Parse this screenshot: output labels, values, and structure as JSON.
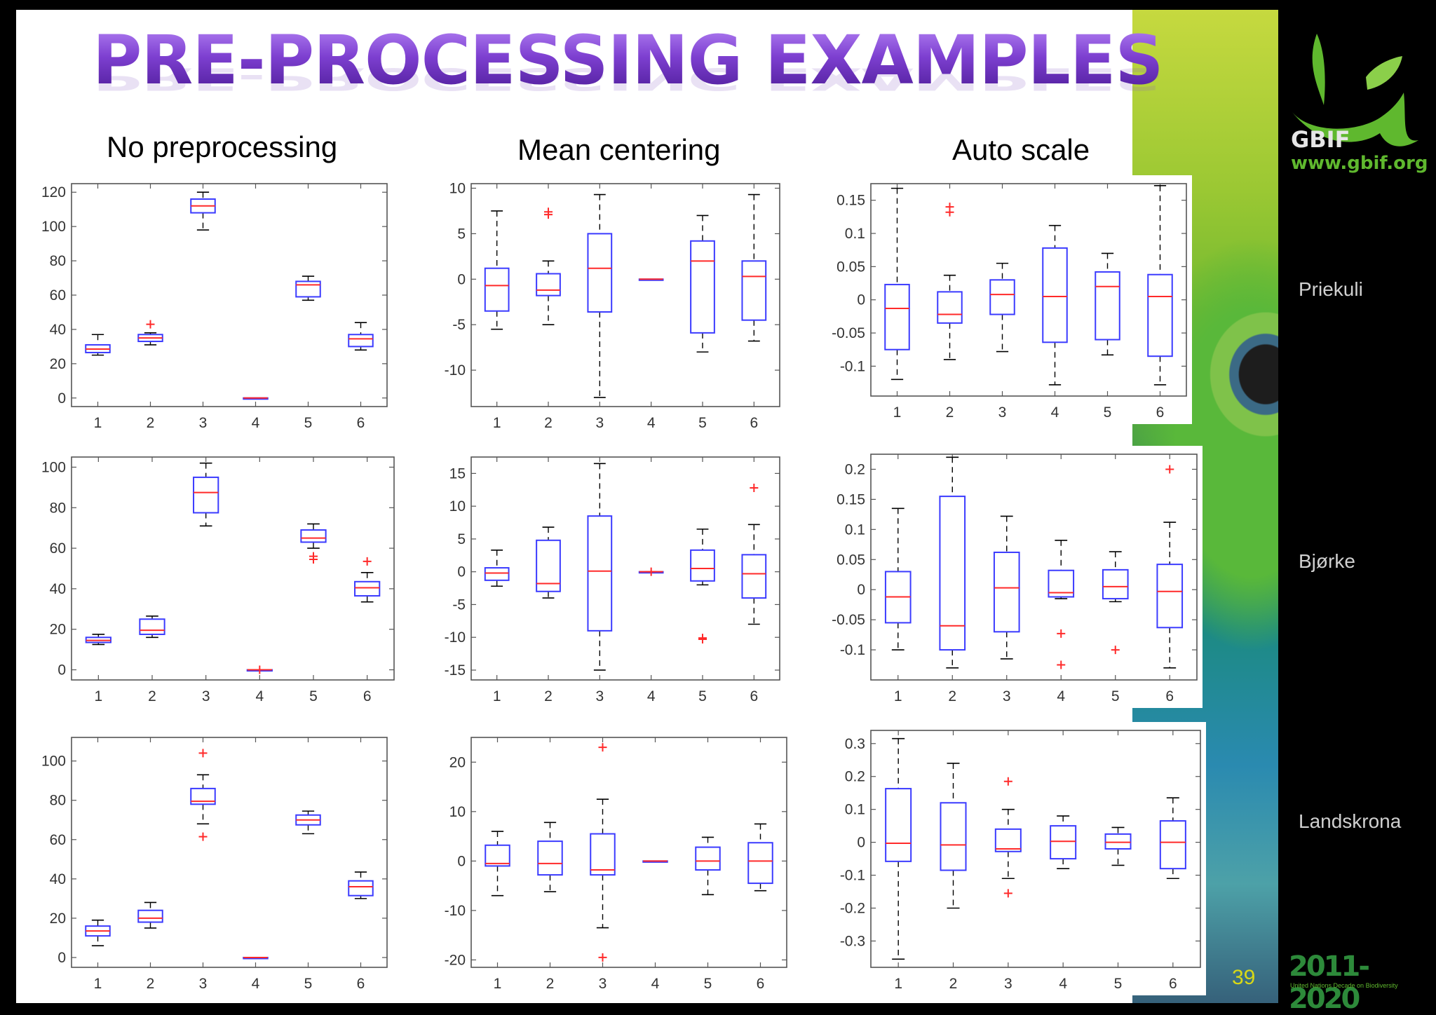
{
  "slide": {
    "title": "PRE-PROCESSING EXAMPLES",
    "columns": [
      "No preprocessing",
      "Mean centering",
      "Auto scale"
    ],
    "rows": [
      "Priekuli",
      "Bjørke",
      "Landskrona"
    ],
    "page_number": "39",
    "logo": {
      "name": "GBIF",
      "url": "www.gbif.org",
      "color": "#5fb82e"
    },
    "decade_logo": {
      "years": "2011-2020",
      "caption": "United Nations Decade on Biodiversity"
    },
    "colors": {
      "box": "#3b3bff",
      "median": "#ff2a2a",
      "outlier": "#ff2a2a",
      "title": "#7d3fd0"
    }
  },
  "chart_data": [
    {
      "type": "box",
      "row": "Priekuli",
      "column": "No preprocessing",
      "categories": [
        "1",
        "2",
        "3",
        "4",
        "5",
        "6"
      ],
      "ylim": [
        -5,
        125
      ],
      "yticks": [
        0,
        20,
        40,
        60,
        80,
        100,
        120
      ],
      "yticklabels": [
        "0",
        "20",
        "40",
        "60",
        "80",
        "100",
        "120"
      ],
      "boxes": [
        {
          "low": 25,
          "q1": 26.5,
          "median": 28.5,
          "q3": 31,
          "high": 37,
          "outliers": []
        },
        {
          "low": 31,
          "q1": 33,
          "median": 35,
          "q3": 37,
          "high": 38,
          "outliers": [
            43
          ]
        },
        {
          "low": 98,
          "q1": 108,
          "median": 112,
          "q3": 116,
          "high": 120,
          "outliers": []
        },
        {
          "low": 0,
          "q1": 0,
          "median": 0,
          "q3": 0,
          "high": 0,
          "outliers": []
        },
        {
          "low": 57,
          "q1": 59,
          "median": 66,
          "q3": 68,
          "high": 71,
          "outliers": []
        },
        {
          "low": 28,
          "q1": 30,
          "median": 34.5,
          "q3": 37,
          "high": 44,
          "outliers": []
        }
      ]
    },
    {
      "type": "box",
      "row": "Priekuli",
      "column": "Mean centering",
      "categories": [
        "1",
        "2",
        "3",
        "4",
        "5",
        "6"
      ],
      "ylim": [
        -14,
        10.5
      ],
      "yticks": [
        -10,
        -5,
        0,
        5,
        10
      ],
      "yticklabels": [
        "-10",
        "-5",
        "0",
        "5",
        "10"
      ],
      "boxes": [
        {
          "low": -5.5,
          "q1": -3.5,
          "median": -0.7,
          "q3": 1.2,
          "high": 7.5,
          "outliers": []
        },
        {
          "low": -5,
          "q1": -1.8,
          "median": -1.2,
          "q3": 0.6,
          "high": 2,
          "outliers": [
            7.4,
            7.1
          ]
        },
        {
          "low": -13,
          "q1": -3.6,
          "median": 1.2,
          "q3": 5,
          "high": 9.3,
          "outliers": []
        },
        {
          "low": 0,
          "q1": 0,
          "median": 0,
          "q3": 0,
          "high": 0,
          "outliers": []
        },
        {
          "low": -8,
          "q1": -5.9,
          "median": 2,
          "q3": 4.2,
          "high": 7,
          "outliers": []
        },
        {
          "low": -6.8,
          "q1": -4.5,
          "median": 0.3,
          "q3": 2,
          "high": 9.3,
          "outliers": []
        }
      ]
    },
    {
      "type": "box",
      "row": "Priekuli",
      "column": "Auto scale",
      "categories": [
        "1",
        "2",
        "3",
        "4",
        "5",
        "6"
      ],
      "ylim": [
        -0.145,
        0.175
      ],
      "yticks": [
        -0.1,
        -0.05,
        0,
        0.05,
        0.1,
        0.15
      ],
      "yticklabels": [
        "-0.1",
        "-0.05",
        "0",
        "0.05",
        "0.1",
        "0.15"
      ],
      "boxes": [
        {
          "low": -0.12,
          "q1": -0.075,
          "median": -0.013,
          "q3": 0.023,
          "high": 0.168,
          "outliers": []
        },
        {
          "low": -0.09,
          "q1": -0.035,
          "median": -0.022,
          "q3": 0.012,
          "high": 0.037,
          "outliers": [
            0.14,
            0.132
          ]
        },
        {
          "low": -0.078,
          "q1": -0.022,
          "median": 0.008,
          "q3": 0.03,
          "high": 0.055,
          "outliers": []
        },
        {
          "low": -0.128,
          "q1": -0.064,
          "median": 0.005,
          "q3": 0.078,
          "high": 0.112,
          "outliers": []
        },
        {
          "low": -0.083,
          "q1": -0.06,
          "median": 0.02,
          "q3": 0.042,
          "high": 0.07,
          "outliers": []
        },
        {
          "low": -0.128,
          "q1": -0.085,
          "median": 0.005,
          "q3": 0.038,
          "high": 0.172,
          "outliers": []
        }
      ]
    },
    {
      "type": "box",
      "row": "Bjørke",
      "column": "No preprocessing",
      "categories": [
        "1",
        "2",
        "3",
        "4",
        "5",
        "6"
      ],
      "ylim": [
        -5,
        105
      ],
      "yticks": [
        0,
        20,
        40,
        60,
        80,
        100
      ],
      "yticklabels": [
        "0",
        "20",
        "40",
        "60",
        "80",
        "100"
      ],
      "boxes": [
        {
          "low": 12.5,
          "q1": 13.5,
          "median": 14.5,
          "q3": 16,
          "high": 17.5,
          "outliers": []
        },
        {
          "low": 16,
          "q1": 17.5,
          "median": 19.5,
          "q3": 25,
          "high": 26.5,
          "outliers": []
        },
        {
          "low": 71,
          "q1": 77.5,
          "median": 87.5,
          "q3": 95,
          "high": 102,
          "outliers": []
        },
        {
          "low": 0,
          "q1": 0,
          "median": 0,
          "q3": 0,
          "high": 0,
          "outliers": [
            0
          ]
        },
        {
          "low": 60,
          "q1": 63,
          "median": 65,
          "q3": 69,
          "high": 72,
          "outliers": [
            56,
            54.5
          ]
        },
        {
          "low": 33.5,
          "q1": 36.5,
          "median": 40.5,
          "q3": 43.5,
          "high": 48,
          "outliers": [
            53.5
          ]
        }
      ]
    },
    {
      "type": "box",
      "row": "Bjørke",
      "column": "Mean centering",
      "categories": [
        "1",
        "2",
        "3",
        "4",
        "5",
        "6"
      ],
      "ylim": [
        -16.5,
        17.5
      ],
      "yticks": [
        -15,
        -10,
        -5,
        0,
        5,
        10,
        15
      ],
      "yticklabels": [
        "-15",
        "-10",
        "-5",
        "0",
        "5",
        "10",
        "15"
      ],
      "boxes": [
        {
          "low": -2.2,
          "q1": -1.3,
          "median": -0.2,
          "q3": 0.6,
          "high": 3.3,
          "outliers": []
        },
        {
          "low": -4,
          "q1": -3,
          "median": -1.8,
          "q3": 4.8,
          "high": 6.8,
          "outliers": []
        },
        {
          "low": -15,
          "q1": -9,
          "median": 0.1,
          "q3": 8.5,
          "high": 16.5,
          "outliers": []
        },
        {
          "low": 0,
          "q1": 0,
          "median": 0,
          "q3": 0,
          "high": 0,
          "outliers": [
            0
          ]
        },
        {
          "low": -2,
          "q1": -1.4,
          "median": 0.5,
          "q3": 3.3,
          "high": 6.5,
          "outliers": [
            -10.3,
            -10.1
          ]
        },
        {
          "low": -8,
          "q1": -4,
          "median": -0.3,
          "q3": 2.6,
          "high": 7.2,
          "outliers": [
            12.8
          ]
        }
      ]
    },
    {
      "type": "box",
      "row": "Bjørke",
      "column": "Auto scale",
      "categories": [
        "1",
        "2",
        "3",
        "4",
        "5",
        "6"
      ],
      "ylim": [
        -0.15,
        0.225
      ],
      "yticks": [
        -0.1,
        -0.05,
        0,
        0.05,
        0.1,
        0.15,
        0.2
      ],
      "yticklabels": [
        "-0.1",
        "-0.05",
        "0",
        "0.05",
        "0.1",
        "0.15",
        "0.2"
      ],
      "boxes": [
        {
          "low": -0.1,
          "q1": -0.055,
          "median": -0.012,
          "q3": 0.03,
          "high": 0.135,
          "outliers": []
        },
        {
          "low": -0.13,
          "q1": -0.1,
          "median": -0.06,
          "q3": 0.155,
          "high": 0.22,
          "outliers": []
        },
        {
          "low": -0.115,
          "q1": -0.07,
          "median": 0.003,
          "q3": 0.062,
          "high": 0.122,
          "outliers": []
        },
        {
          "low": -0.015,
          "q1": -0.012,
          "median": -0.005,
          "q3": 0.032,
          "high": 0.082,
          "outliers": [
            -0.073,
            -0.125
          ]
        },
        {
          "low": -0.02,
          "q1": -0.015,
          "median": 0.005,
          "q3": 0.033,
          "high": 0.063,
          "outliers": [
            -0.1
          ]
        },
        {
          "low": -0.13,
          "q1": -0.063,
          "median": -0.003,
          "q3": 0.042,
          "high": 0.112,
          "outliers": [
            0.2
          ]
        }
      ]
    },
    {
      "type": "box",
      "row": "Landskrona",
      "column": "No preprocessing",
      "categories": [
        "1",
        "2",
        "3",
        "4",
        "5",
        "6"
      ],
      "ylim": [
        -5,
        112
      ],
      "yticks": [
        0,
        20,
        40,
        60,
        80,
        100
      ],
      "yticklabels": [
        "0",
        "20",
        "40",
        "60",
        "80",
        "100"
      ],
      "boxes": [
        {
          "low": 6,
          "q1": 11,
          "median": 13.5,
          "q3": 16,
          "high": 19,
          "outliers": []
        },
        {
          "low": 15,
          "q1": 18,
          "median": 20,
          "q3": 24,
          "high": 28,
          "outliers": []
        },
        {
          "low": 68,
          "q1": 78,
          "median": 79.5,
          "q3": 86,
          "high": 93,
          "outliers": [
            104,
            61.5
          ]
        },
        {
          "low": 0,
          "q1": 0,
          "median": 0,
          "q3": 0,
          "high": 0,
          "outliers": []
        },
        {
          "low": 63,
          "q1": 67.5,
          "median": 70,
          "q3": 72.5,
          "high": 74.5,
          "outliers": []
        },
        {
          "low": 30,
          "q1": 31.5,
          "median": 36,
          "q3": 39,
          "high": 43.5,
          "outliers": []
        }
      ]
    },
    {
      "type": "box",
      "row": "Landskrona",
      "column": "Mean centering",
      "categories": [
        "1",
        "2",
        "3",
        "4",
        "5",
        "6"
      ],
      "ylim": [
        -21.5,
        25
      ],
      "yticks": [
        -20,
        -10,
        0,
        10,
        20
      ],
      "yticklabels": [
        "-20",
        "-10",
        "0",
        "10",
        "20"
      ],
      "boxes": [
        {
          "low": -7,
          "q1": -1,
          "median": -0.5,
          "q3": 3.2,
          "high": 6,
          "outliers": []
        },
        {
          "low": -6.2,
          "q1": -2.8,
          "median": -0.5,
          "q3": 4,
          "high": 7.8,
          "outliers": []
        },
        {
          "low": -13.5,
          "q1": -2.8,
          "median": -1.8,
          "q3": 5.5,
          "high": 12.5,
          "outliers": [
            23,
            -19.5
          ]
        },
        {
          "low": 0,
          "q1": 0,
          "median": 0,
          "q3": 0,
          "high": 0,
          "outliers": []
        },
        {
          "low": -6.8,
          "q1": -1.8,
          "median": 0,
          "q3": 2.8,
          "high": 4.8,
          "outliers": []
        },
        {
          "low": -6,
          "q1": -4.5,
          "median": 0,
          "q3": 3.7,
          "high": 7.5,
          "outliers": []
        }
      ]
    },
    {
      "type": "box",
      "row": "Landskrona",
      "column": "Auto scale",
      "categories": [
        "1",
        "2",
        "3",
        "4",
        "5",
        "6"
      ],
      "ylim": [
        -0.38,
        0.34
      ],
      "yticks": [
        -0.3,
        -0.2,
        -0.1,
        0,
        0.1,
        0.2,
        0.3
      ],
      "yticklabels": [
        "-0.3",
        "-0.2",
        "-0.1",
        "0",
        "0.1",
        "0.2",
        "0.3"
      ],
      "boxes": [
        {
          "low": -0.355,
          "q1": -0.058,
          "median": -0.003,
          "q3": 0.163,
          "high": 0.315,
          "outliers": []
        },
        {
          "low": -0.2,
          "q1": -0.085,
          "median": -0.008,
          "q3": 0.12,
          "high": 0.24,
          "outliers": []
        },
        {
          "low": -0.11,
          "q1": -0.028,
          "median": -0.02,
          "q3": 0.04,
          "high": 0.1,
          "outliers": [
            0.185,
            -0.155
          ]
        },
        {
          "low": -0.08,
          "q1": -0.05,
          "median": 0.003,
          "q3": 0.05,
          "high": 0.08,
          "outliers": []
        },
        {
          "low": -0.07,
          "q1": -0.02,
          "median": 0,
          "q3": 0.025,
          "high": 0.045,
          "outliers": []
        },
        {
          "low": -0.11,
          "q1": -0.08,
          "median": 0,
          "q3": 0.065,
          "high": 0.135,
          "outliers": []
        }
      ]
    }
  ]
}
